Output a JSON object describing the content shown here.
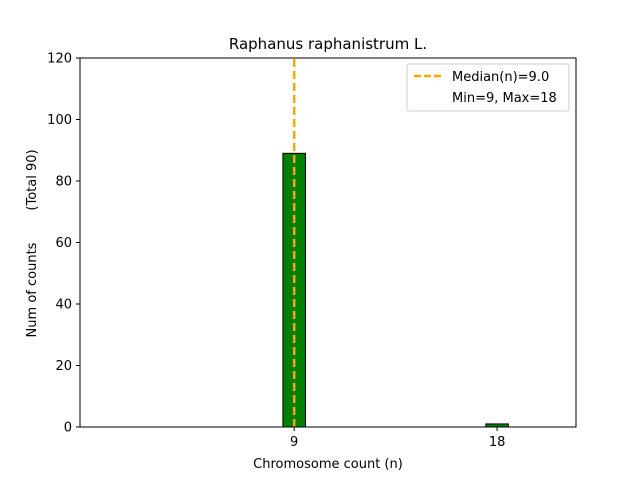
{
  "chart_data": {
    "type": "bar",
    "title": "Raphanus raphanistrum L.",
    "xlabel": "Chromosome count (n)",
    "ylabel_main": "Num of counts",
    "ylabel_total": "(Total 90)",
    "ylim": [
      0,
      120
    ],
    "xlim": [
      -0.5,
      21.5
    ],
    "yticks": [
      0,
      20,
      40,
      60,
      80,
      100,
      120
    ],
    "xticks": [
      9,
      18
    ],
    "bars": [
      {
        "x": 9,
        "value": 89
      },
      {
        "x": 18,
        "value": 1
      }
    ],
    "bar_width": 1,
    "median_line": {
      "x": 9.0
    },
    "legend": {
      "placement": "top-right",
      "items": [
        "Median(n)=9.0",
        "Min=9, Max=18"
      ]
    },
    "colors": {
      "bar_fill": "#008000",
      "bar_edge": "#000000",
      "median": "#FFA500"
    }
  }
}
